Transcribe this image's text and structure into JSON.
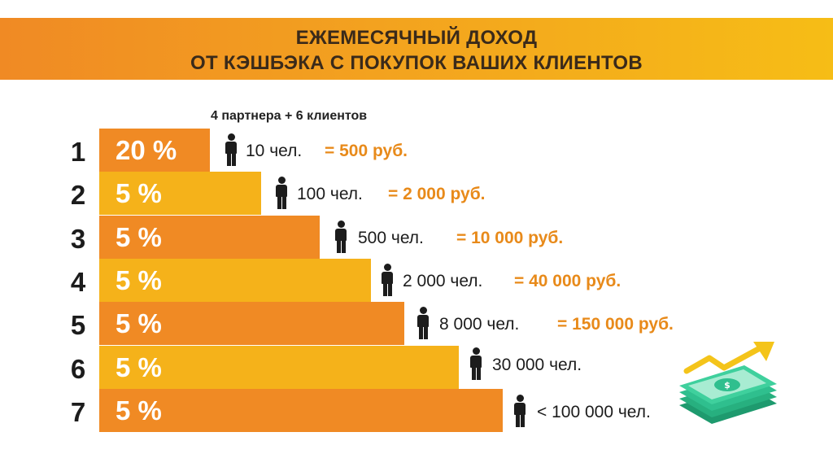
{
  "header": {
    "line1": "ЕЖЕМЕСЯЧНЫЙ ДОХОД",
    "line2": "ОТ КЭШБЭКА С ПОКУПОК ВАШИХ КЛИЕНТОВ"
  },
  "note": "4 партнера + 6 клиентов",
  "levels": [
    {
      "level": "1",
      "percent": "20 %",
      "people": "10 чел.",
      "income": "= 500 руб."
    },
    {
      "level": "2",
      "percent": "5 %",
      "people": "100 чел.",
      "income": "= 2 000 руб."
    },
    {
      "level": "3",
      "percent": "5 %",
      "people": "500 чел.",
      "income": "= 10 000 руб."
    },
    {
      "level": "4",
      "percent": "5 %",
      "people": "2 000 чел.",
      "income": "= 40 000 руб."
    },
    {
      "level": "5",
      "percent": "5 %",
      "people": "8 000 чел.",
      "income": "= 150 000 руб."
    },
    {
      "level": "6",
      "percent": "5 %",
      "people": "30 000 чел."
    },
    {
      "level": "7",
      "percent": "5 %",
      "people": "< 100 000 чел."
    }
  ],
  "colors": {
    "bar_dark": "#f08a24",
    "bar_light": "#f5b21a",
    "income_text": "#e88a1a",
    "money_green": "#2fbf8e",
    "arrow_yellow": "#f4c41a"
  },
  "icons": {
    "person": "person-icon",
    "money": "money-stack-icon",
    "arrow": "growth-arrow-icon"
  }
}
